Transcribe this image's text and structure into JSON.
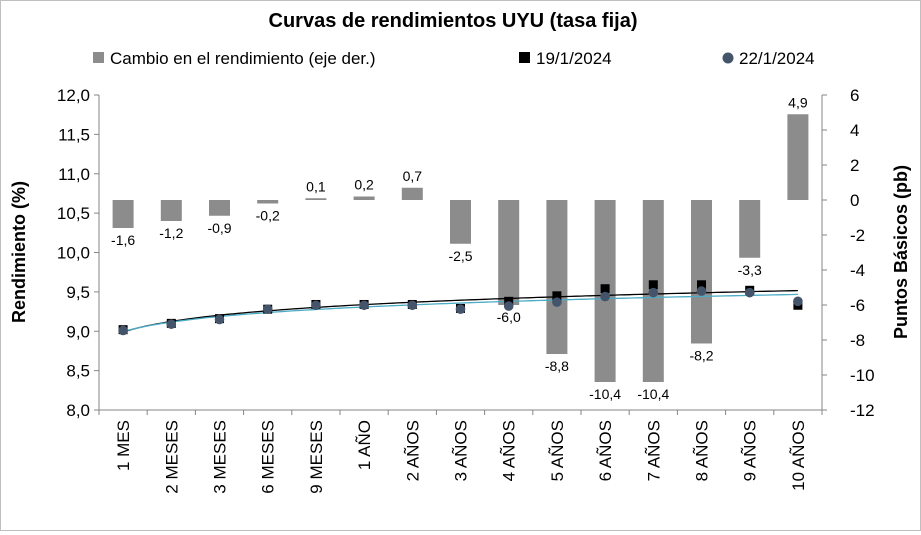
{
  "chart_data": {
    "type": "bar",
    "title": "Curvas de rendimientos UYU (tasa fija)",
    "categories": [
      "1 MES",
      "2 MESES",
      "3 MESES",
      "6 MESES",
      "9 MESES",
      "1 AÑO",
      "2 AÑOS",
      "3 AÑOS",
      "4 AÑOS",
      "5 AÑOS",
      "6 AÑOS",
      "7 AÑOS",
      "8 AÑOS",
      "9 AÑOS",
      "10 AÑOS"
    ],
    "ylabel": "Rendimiento (%)",
    "y2label": "Puntos Básicos (pb)",
    "ylim": [
      8.0,
      12.0
    ],
    "y2lim": [
      -12,
      6
    ],
    "yticks": [
      "8,0",
      "8,5",
      "9,0",
      "9,5",
      "10,0",
      "10,5",
      "11,0",
      "11,5",
      "12,0"
    ],
    "y2ticks": [
      "-12",
      "-10",
      "-8",
      "-6",
      "-4",
      "-2",
      "0",
      "2",
      "4",
      "6"
    ],
    "legend_position": "top",
    "series": [
      {
        "name": "Cambio en el rendimiento (eje der.)",
        "kind": "bar",
        "axis": "right",
        "color": "#8c8c8c",
        "values": [
          -1.6,
          -1.2,
          -0.9,
          -0.2,
          0.1,
          0.2,
          0.7,
          -2.5,
          -6.0,
          -8.8,
          -10.4,
          -10.4,
          -8.2,
          -3.3,
          4.9
        ],
        "labels": [
          "-1,6",
          "-1,2",
          "-0,9",
          "-0,2",
          "0,1",
          "0,2",
          "0,7",
          "-2,5",
          "-6,0",
          "-8,8",
          "-10,4",
          "-10,4",
          "-8,2",
          "-3,3",
          "4,9"
        ]
      },
      {
        "name": "19/1/2024",
        "kind": "scatter",
        "marker": "square",
        "axis": "left",
        "color": "#000000",
        "trend_color": "#000000",
        "values": [
          9.02,
          9.1,
          9.16,
          9.28,
          9.34,
          9.34,
          9.34,
          9.29,
          9.38,
          9.45,
          9.54,
          9.59,
          9.59,
          9.52,
          9.33
        ]
      },
      {
        "name": "22/1/2024",
        "kind": "scatter",
        "marker": "circle",
        "axis": "left",
        "color": "#44546a",
        "trend_color": "#4bacc6",
        "values": [
          9.01,
          9.09,
          9.15,
          9.28,
          9.33,
          9.33,
          9.33,
          9.28,
          9.32,
          9.37,
          9.44,
          9.49,
          9.51,
          9.49,
          9.38
        ]
      }
    ]
  }
}
